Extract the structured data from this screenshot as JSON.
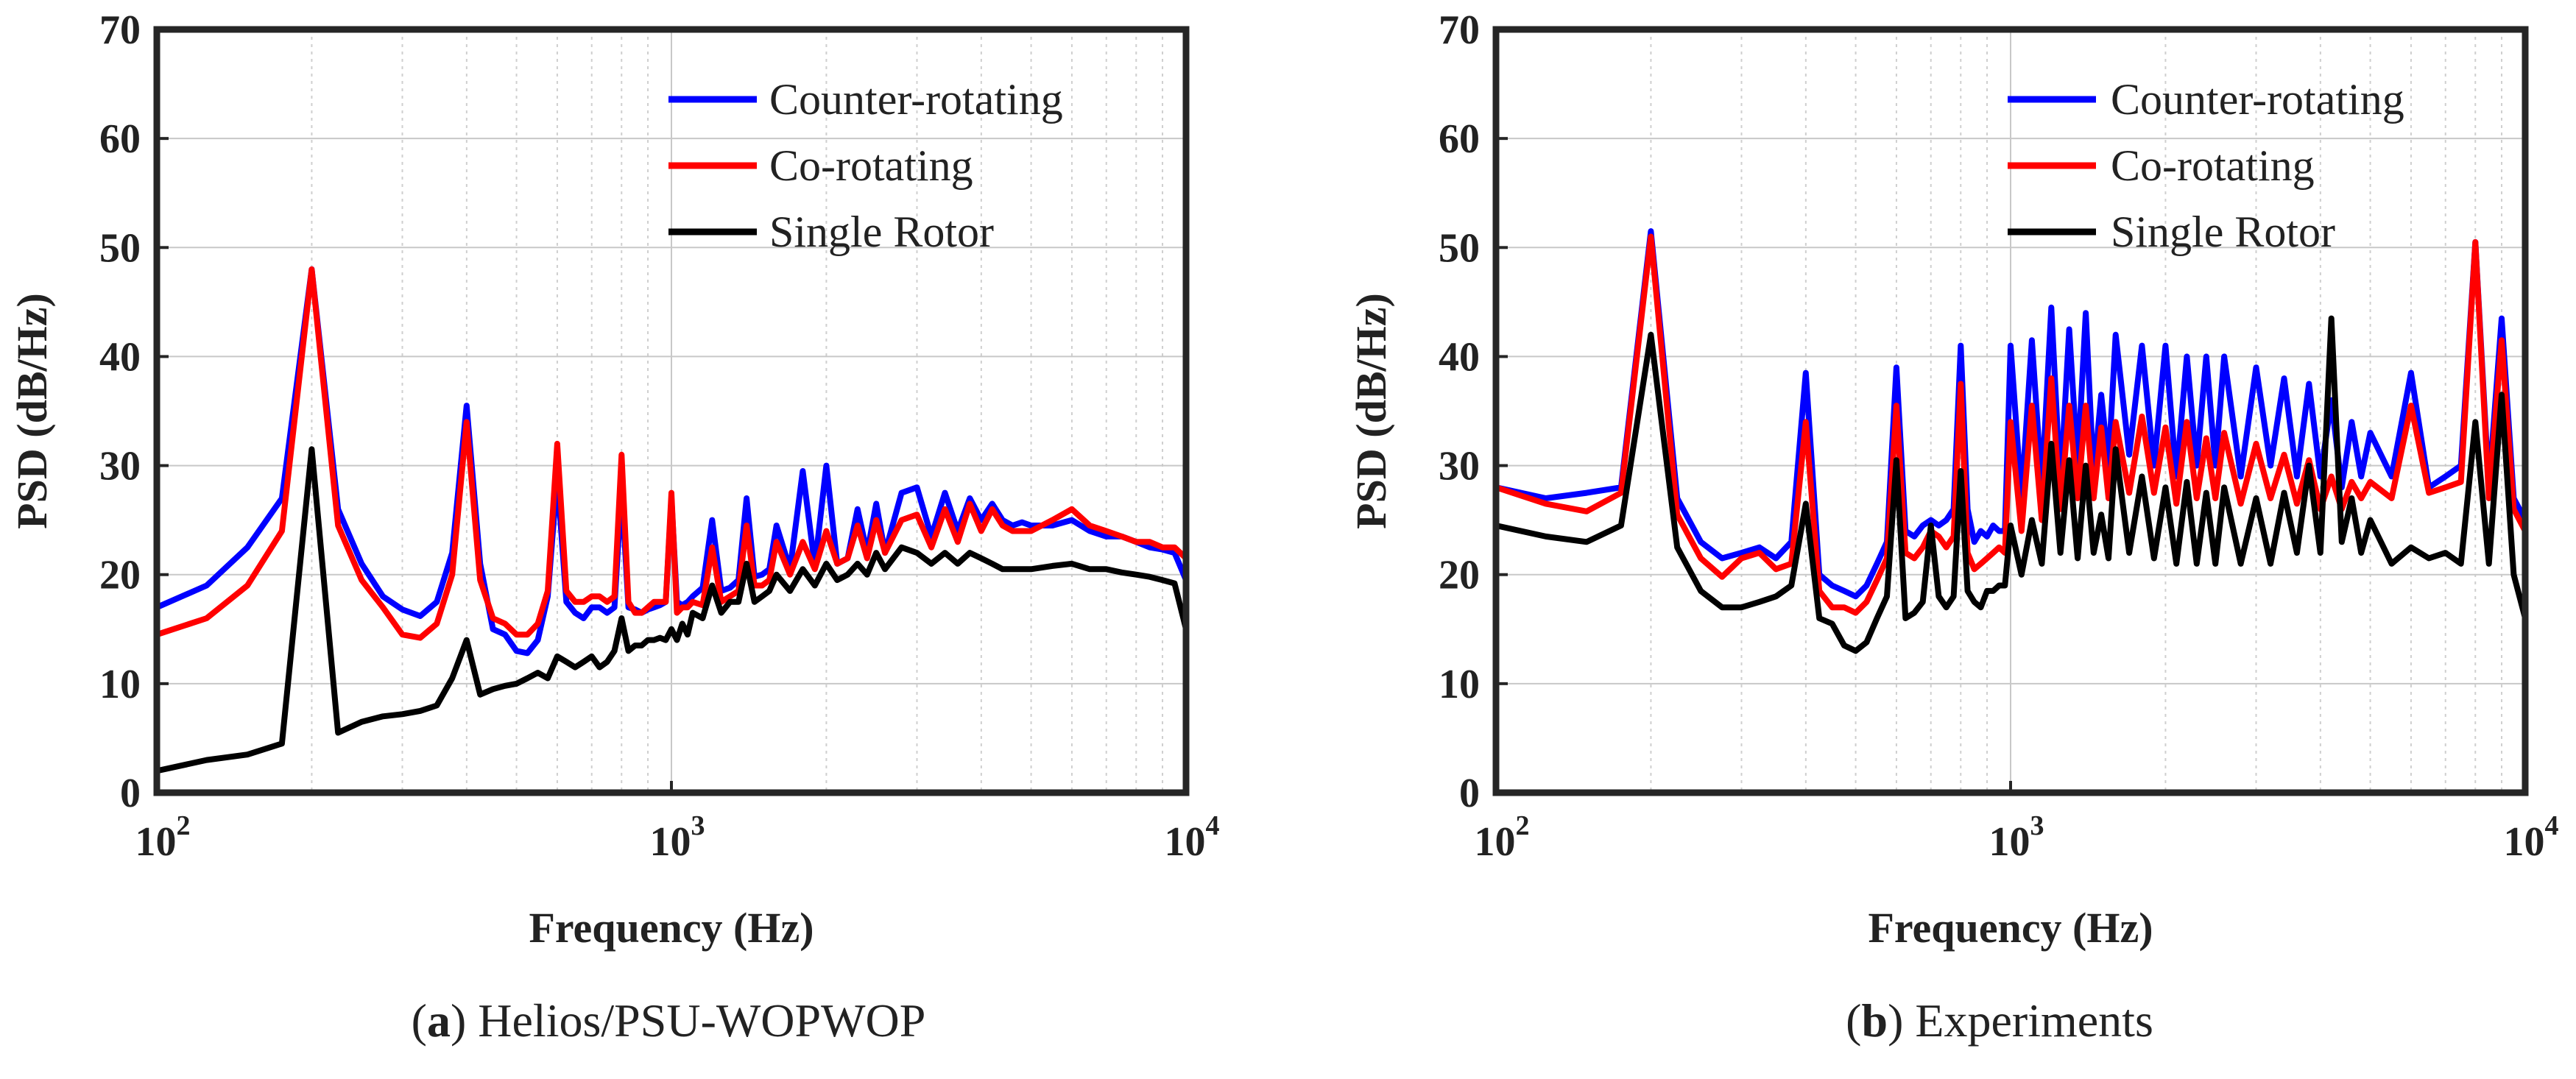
{
  "chart_data": [
    {
      "type": "line",
      "panel_id": "a",
      "caption_letter": "a",
      "caption_text": " Helios/PSU-WOPWOP",
      "xlabel": "Frequency (Hz)",
      "ylabel": "PSD (dB/Hz)",
      "x_scale": "log",
      "xlim": [
        100,
        10000
      ],
      "ylim": [
        0,
        70
      ],
      "x_ticks": [
        100,
        1000,
        10000
      ],
      "x_tick_base": "10",
      "x_tick_exponents": [
        "2",
        "3",
        "4"
      ],
      "y_ticks": [
        0,
        10,
        20,
        30,
        40,
        50,
        60,
        70
      ],
      "y_tick_labels": [
        "0",
        "10",
        "20",
        "30",
        "40",
        "50",
        "60",
        "70"
      ],
      "grid": true,
      "legend_position": "top-right",
      "series": [
        {
          "name": "Counter-rotating",
          "color": "#0000ff",
          "x": [
            100,
            125,
            150,
            175,
            200,
            225,
            250,
            275,
            300,
            325,
            350,
            375,
            400,
            425,
            450,
            475,
            500,
            525,
            550,
            575,
            600,
            625,
            650,
            675,
            700,
            725,
            750,
            775,
            800,
            825,
            850,
            875,
            900,
            925,
            950,
            975,
            1000,
            1025,
            1050,
            1075,
            1100,
            1150,
            1200,
            1250,
            1300,
            1350,
            1400,
            1450,
            1500,
            1550,
            1600,
            1700,
            1800,
            1900,
            2000,
            2100,
            2200,
            2300,
            2400,
            2500,
            2600,
            2800,
            3000,
            3200,
            3400,
            3600,
            3800,
            4000,
            4200,
            4400,
            4600,
            4800,
            5000,
            5500,
            6000,
            6500,
            7000,
            7500,
            8000,
            8500,
            9000,
            9500,
            10000
          ],
          "y": [
            17,
            19,
            22.5,
            27,
            48,
            26,
            21,
            18,
            16.8,
            16.2,
            17.5,
            22,
            35.5,
            21,
            15,
            14.5,
            13,
            12.8,
            14,
            18,
            29,
            17.5,
            16.5,
            16,
            17,
            17,
            16.5,
            17,
            28,
            17,
            16.8,
            16.5,
            16.8,
            17,
            17.2,
            17.5,
            27,
            17.5,
            17.2,
            17.5,
            18,
            18.8,
            25,
            18.5,
            18.8,
            19.5,
            27,
            19.8,
            20,
            20.5,
            24.5,
            20.5,
            29.5,
            20.8,
            30,
            21,
            21.5,
            26,
            22,
            26.5,
            22,
            27.5,
            28,
            23.5,
            27.5,
            24,
            27,
            25,
            26.5,
            25,
            24.5,
            24.8,
            24.5,
            24.5,
            25,
            24,
            23.5,
            23.5,
            23,
            22.5,
            22.3,
            22,
            19.5
          ]
        },
        {
          "name": "Co-rotating",
          "color": "#ff0000",
          "x": [
            100,
            125,
            150,
            175,
            200,
            225,
            250,
            275,
            300,
            325,
            350,
            375,
            400,
            425,
            450,
            475,
            500,
            525,
            550,
            575,
            600,
            625,
            650,
            675,
            700,
            725,
            750,
            775,
            800,
            825,
            850,
            875,
            900,
            925,
            950,
            975,
            1000,
            1025,
            1050,
            1075,
            1100,
            1150,
            1200,
            1250,
            1300,
            1350,
            1400,
            1450,
            1500,
            1550,
            1600,
            1700,
            1800,
            1900,
            2000,
            2100,
            2200,
            2300,
            2400,
            2500,
            2600,
            2800,
            3000,
            3200,
            3400,
            3600,
            3800,
            4000,
            4200,
            4400,
            4600,
            4800,
            5000,
            5500,
            6000,
            6500,
            7000,
            7500,
            8000,
            8500,
            9000,
            9500,
            10000
          ],
          "y": [
            14.5,
            16,
            19,
            24,
            48,
            24.5,
            19.5,
            17,
            14.5,
            14.2,
            15.5,
            20,
            34,
            19.5,
            16,
            15.5,
            14.5,
            14.5,
            15.5,
            18.5,
            32,
            18.5,
            17.5,
            17.5,
            18,
            18,
            17.5,
            18,
            31,
            17.5,
            16.5,
            16.5,
            17,
            17.5,
            17.5,
            17.5,
            27.5,
            16.5,
            17,
            17,
            17.5,
            17.2,
            22.5,
            17.5,
            18,
            18.5,
            24.5,
            19,
            19,
            19.5,
            23,
            20,
            23,
            20.5,
            24,
            21,
            21.5,
            24.5,
            21.5,
            25,
            22,
            25,
            25.5,
            22.5,
            26,
            23,
            26.5,
            24,
            26,
            24.5,
            24,
            24,
            24,
            25,
            26,
            24.5,
            24,
            23.5,
            23,
            23,
            22.5,
            22.5,
            21.5
          ]
        },
        {
          "name": "Single Rotor",
          "color": "#000000",
          "x": [
            100,
            125,
            150,
            175,
            200,
            225,
            250,
            275,
            300,
            325,
            350,
            375,
            400,
            425,
            450,
            475,
            500,
            525,
            550,
            575,
            600,
            625,
            650,
            675,
            700,
            725,
            750,
            775,
            800,
            825,
            850,
            875,
            900,
            925,
            950,
            975,
            1000,
            1025,
            1050,
            1075,
            1100,
            1150,
            1200,
            1250,
            1300,
            1350,
            1400,
            1450,
            1500,
            1550,
            1600,
            1700,
            1800,
            1900,
            2000,
            2100,
            2200,
            2300,
            2400,
            2500,
            2600,
            2800,
            3000,
            3200,
            3400,
            3600,
            3800,
            4000,
            4200,
            4400,
            4600,
            4800,
            5000,
            5500,
            6000,
            6500,
            7000,
            7500,
            8000,
            8500,
            9000,
            9500,
            10000
          ],
          "y": [
            2,
            3,
            3.5,
            4.5,
            31.5,
            5.5,
            6.5,
            7,
            7.2,
            7.5,
            8,
            10.5,
            14,
            9,
            9.5,
            9.8,
            10,
            10.5,
            11,
            10.5,
            12.5,
            12,
            11.5,
            12,
            12.5,
            11.5,
            12,
            13,
            16,
            13,
            13.5,
            13.5,
            14,
            14,
            14.2,
            14,
            15,
            14,
            15.5,
            14.5,
            16.5,
            16,
            19,
            16.5,
            17.5,
            17.5,
            21,
            17.5,
            18,
            18.5,
            20,
            18.5,
            20.5,
            19,
            21,
            19.5,
            20,
            21,
            20,
            22,
            20.5,
            22.5,
            22,
            21,
            22,
            21,
            22,
            21.5,
            21,
            20.5,
            20.5,
            20.5,
            20.5,
            20.8,
            21,
            20.5,
            20.5,
            20.2,
            20,
            19.8,
            19.5,
            19.2,
            15
          ]
        }
      ]
    },
    {
      "type": "line",
      "panel_id": "b",
      "caption_letter": "b",
      "caption_text": " Experiments",
      "xlabel": "Frequency (Hz)",
      "ylabel": "PSD (dB/Hz)",
      "x_scale": "log",
      "xlim": [
        100,
        10000
      ],
      "ylim": [
        0,
        70
      ],
      "x_ticks": [
        100,
        1000,
        10000
      ],
      "x_tick_base": "10",
      "x_tick_exponents": [
        "2",
        "3",
        "4"
      ],
      "y_ticks": [
        0,
        10,
        20,
        30,
        40,
        50,
        60,
        70
      ],
      "y_tick_labels": [
        "0",
        "10",
        "20",
        "30",
        "40",
        "50",
        "60",
        "70"
      ],
      "grid": true,
      "legend_position": "top-right",
      "series": [
        {
          "name": "Counter-rotating",
          "color": "#0000ff",
          "x": [
            100,
            125,
            150,
            175,
            200,
            225,
            250,
            275,
            300,
            325,
            350,
            375,
            400,
            425,
            450,
            475,
            500,
            525,
            550,
            575,
            600,
            625,
            650,
            675,
            700,
            725,
            750,
            775,
            800,
            825,
            850,
            875,
            900,
            925,
            950,
            975,
            1000,
            1050,
            1100,
            1150,
            1200,
            1250,
            1300,
            1350,
            1400,
            1450,
            1500,
            1550,
            1600,
            1700,
            1800,
            1900,
            2000,
            2100,
            2200,
            2300,
            2400,
            2500,
            2600,
            2800,
            3000,
            3200,
            3400,
            3600,
            3800,
            4000,
            4200,
            4400,
            4600,
            4800,
            5000,
            5500,
            6000,
            6500,
            7000,
            7500,
            8000,
            8500,
            9000,
            9500,
            10000
          ],
          "y": [
            28,
            27,
            27.5,
            28,
            51.5,
            27,
            23,
            21.5,
            22,
            22.5,
            21.5,
            23,
            38.5,
            20,
            19,
            18.5,
            18,
            19,
            21,
            23,
            39,
            24,
            23.5,
            24.5,
            25,
            24.5,
            25,
            26,
            41,
            26,
            23,
            24,
            23.5,
            24.5,
            24,
            24,
            41,
            27,
            41.5,
            28,
            44.5,
            28,
            42.5,
            30,
            44,
            29,
            36.5,
            30,
            42,
            31,
            41,
            30,
            41,
            29,
            40,
            30,
            40,
            30,
            40,
            29,
            39,
            30,
            38,
            29,
            37.5,
            29,
            36,
            28,
            34,
            29,
            33,
            29,
            38.5,
            28,
            29,
            30,
            50.5,
            28,
            43.5,
            27,
            25
          ]
        },
        {
          "name": "Co-rotating",
          "color": "#ff0000",
          "x": [
            100,
            125,
            150,
            175,
            200,
            225,
            250,
            275,
            300,
            325,
            350,
            375,
            400,
            425,
            450,
            475,
            500,
            525,
            550,
            575,
            600,
            625,
            650,
            675,
            700,
            725,
            750,
            775,
            800,
            825,
            850,
            875,
            900,
            925,
            950,
            975,
            1000,
            1050,
            1100,
            1150,
            1200,
            1250,
            1300,
            1350,
            1400,
            1450,
            1500,
            1550,
            1600,
            1700,
            1800,
            1900,
            2000,
            2100,
            2200,
            2300,
            2400,
            2500,
            2600,
            2800,
            3000,
            3200,
            3400,
            3600,
            3800,
            4000,
            4200,
            4400,
            4600,
            4800,
            5000,
            5500,
            6000,
            6500,
            7000,
            7500,
            8000,
            8500,
            9000,
            9500,
            10000
          ],
          "y": [
            28,
            26.5,
            25.8,
            27.5,
            51,
            25.5,
            21.5,
            19.8,
            21.5,
            22,
            20.5,
            21,
            34,
            18.5,
            17,
            17,
            16.5,
            17.5,
            19.5,
            21.5,
            35.5,
            22,
            21.5,
            22.5,
            24,
            23.5,
            22.5,
            23.5,
            37.5,
            22,
            20.5,
            21,
            21.5,
            22,
            22.5,
            22,
            34,
            24,
            35.5,
            25,
            38,
            26,
            35.5,
            27,
            35.5,
            27,
            33.5,
            27,
            34,
            27.5,
            34.5,
            27.5,
            33.5,
            26.5,
            34,
            27,
            32.5,
            27,
            33,
            26.5,
            32,
            27,
            31,
            26.5,
            30.5,
            26,
            29,
            26,
            28.5,
            27,
            28.5,
            27,
            35.5,
            27.5,
            28,
            28.5,
            50.5,
            27,
            41.5,
            26,
            24
          ]
        },
        {
          "name": "Single Rotor",
          "color": "#000000",
          "x": [
            100,
            125,
            150,
            175,
            200,
            225,
            250,
            275,
            300,
            325,
            350,
            375,
            400,
            425,
            450,
            475,
            500,
            525,
            550,
            575,
            600,
            625,
            650,
            675,
            700,
            725,
            750,
            775,
            800,
            825,
            850,
            875,
            900,
            925,
            950,
            975,
            1000,
            1050,
            1100,
            1150,
            1200,
            1250,
            1300,
            1350,
            1400,
            1450,
            1500,
            1550,
            1600,
            1700,
            1800,
            1900,
            2000,
            2100,
            2200,
            2300,
            2400,
            2500,
            2600,
            2800,
            3000,
            3200,
            3400,
            3600,
            3800,
            4000,
            4200,
            4400,
            4600,
            4800,
            5000,
            5500,
            6000,
            6500,
            7000,
            7500,
            8000,
            8500,
            9000,
            9500,
            10000
          ],
          "y": [
            24.5,
            23.5,
            23,
            24.5,
            42,
            22.5,
            18.5,
            17,
            17,
            17.5,
            18,
            19,
            26.5,
            16,
            15.5,
            13.5,
            13,
            13.8,
            16,
            18,
            30.5,
            16,
            16.5,
            17.5,
            24.5,
            18,
            17,
            18,
            29.5,
            18.5,
            17.5,
            17,
            18.5,
            18.5,
            19,
            19,
            24.5,
            20,
            25,
            21,
            32,
            22,
            30.5,
            21.5,
            30,
            22,
            25.5,
            21.5,
            31.5,
            22,
            29,
            21.5,
            28,
            21,
            28.5,
            21,
            27.5,
            21,
            28,
            21,
            27,
            21,
            27.5,
            22,
            30,
            22,
            43.5,
            23,
            27,
            22,
            25,
            21,
            22.5,
            21.5,
            22,
            21,
            34,
            21,
            36.5,
            20,
            16
          ]
        }
      ]
    }
  ]
}
